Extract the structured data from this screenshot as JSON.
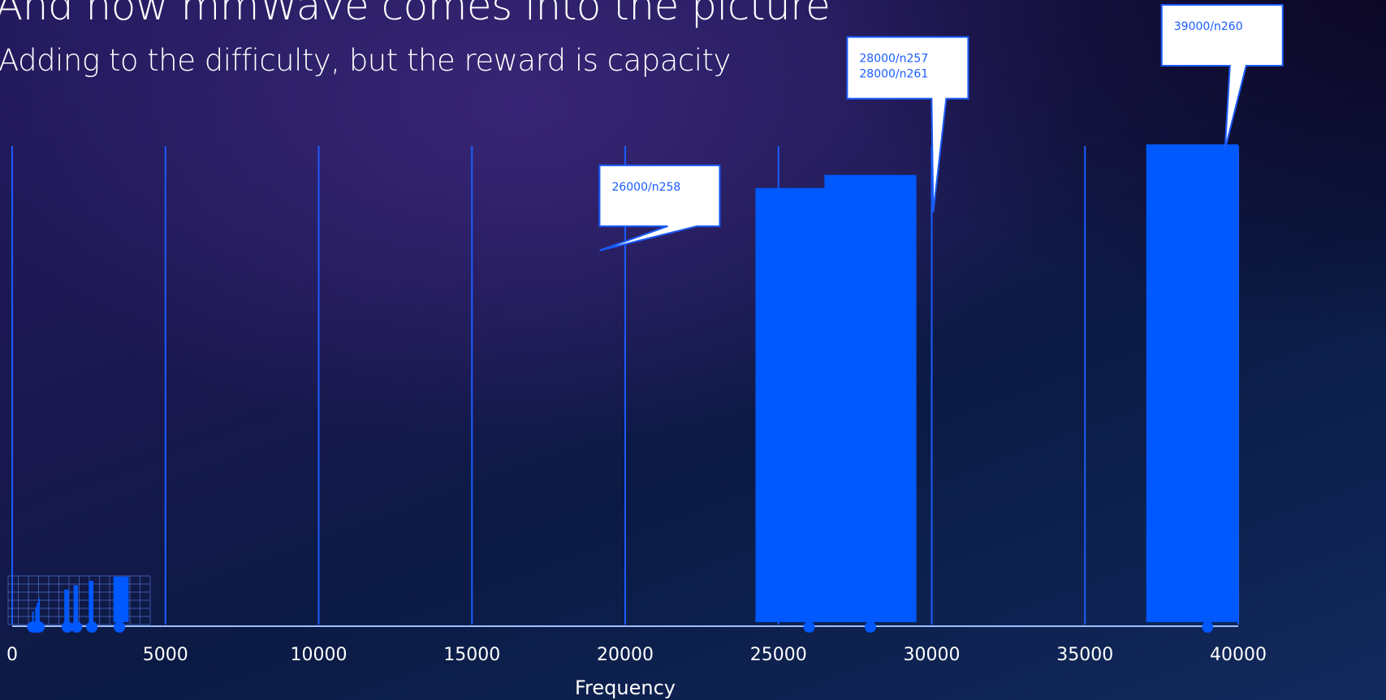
{
  "title": "And now mmWave comes into the picture",
  "subtitle": "Adding to the difficulty, but the reward is capacity",
  "colors": {
    "bar": "#0058ff",
    "gridline": "#1a5cff",
    "axis": "#9ec0ff",
    "callout_text": "#1a5cff",
    "callout_border": "#1a5cff",
    "callout_fill": "#ffffff"
  },
  "chart_data": {
    "type": "bar",
    "xlabel": "Frequency",
    "ylabel": "",
    "xlim": [
      0,
      40000
    ],
    "x_ticks": [
      "0",
      "5000",
      "10000",
      "15000",
      "20000",
      "25000",
      "30000",
      "35000",
      "40000"
    ],
    "grid": "vertical",
    "bars": [
      {
        "start": 650,
        "end": 700,
        "height": 3,
        "marker": 675
      },
      {
        "start": 750,
        "end": 800,
        "height": 4,
        "marker": 775
      },
      {
        "start": 800,
        "end": 850,
        "height": 5,
        "marker": 825
      },
      {
        "start": 850,
        "end": 900,
        "height": 6,
        "marker": 875
      },
      {
        "start": 1700,
        "end": 1850,
        "height": 8,
        "marker": 1800
      },
      {
        "start": 2000,
        "end": 2150,
        "height": 9,
        "marker": 2100
      },
      {
        "start": 2500,
        "end": 2650,
        "height": 10,
        "marker": 2600
      },
      {
        "start": 3300,
        "end": 3800,
        "height": 11,
        "marker": 3500
      },
      {
        "start": 24250,
        "end": 27500,
        "height": 100,
        "marker": 26000
      },
      {
        "start": 26500,
        "end": 29500,
        "height": 103,
        "marker": 28000
      },
      {
        "start": 37000,
        "end": 40000,
        "height": 110,
        "marker": 39000
      }
    ],
    "ylim": [
      0,
      110
    ],
    "annotations": [
      {
        "lines": [
          "26000/n258"
        ],
        "target_bar": 8
      },
      {
        "lines": [
          "28000/n257",
          "28000/n261"
        ],
        "target_bar": 9
      },
      {
        "lines": [
          "39000/n260"
        ],
        "target_bar": 10
      }
    ]
  }
}
